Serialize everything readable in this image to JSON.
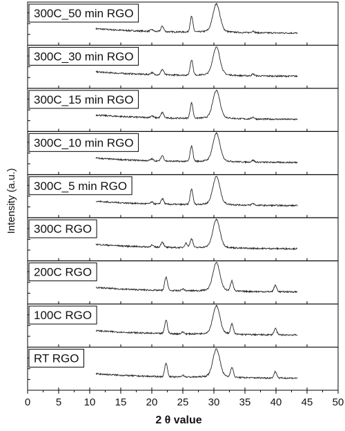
{
  "chart_data": {
    "type": "line",
    "xlabel": "2 θ value",
    "ylabel": "Intensity (a.u.)",
    "xlim": [
      0,
      50
    ],
    "xticks": [
      0,
      5,
      10,
      15,
      20,
      25,
      30,
      35,
      40,
      45,
      50
    ],
    "x_range_data": [
      11,
      43.5
    ],
    "legend": "none (each panel labeled top-left)",
    "grid": false,
    "series": [
      {
        "name": "300C_50 min RGO",
        "peaks": [
          [
            20.0,
            0.1
          ],
          [
            21.7,
            0.3
          ],
          [
            26.4,
            0.85
          ],
          [
            30.4,
            1.4
          ],
          [
            36.3,
            0.1
          ]
        ]
      },
      {
        "name": "300C_30 min RGO",
        "peaks": [
          [
            20.0,
            0.1
          ],
          [
            21.7,
            0.3
          ],
          [
            26.4,
            0.85
          ],
          [
            30.4,
            1.4
          ],
          [
            36.3,
            0.1
          ]
        ]
      },
      {
        "name": "300C_15 min RGO",
        "peaks": [
          [
            20.0,
            0.1
          ],
          [
            21.7,
            0.3
          ],
          [
            26.4,
            0.85
          ],
          [
            30.4,
            1.4
          ],
          [
            36.3,
            0.1
          ]
        ]
      },
      {
        "name": "300C_10 min RGO",
        "peaks": [
          [
            20.0,
            0.1
          ],
          [
            21.7,
            0.3
          ],
          [
            26.4,
            0.85
          ],
          [
            30.4,
            1.4
          ],
          [
            36.3,
            0.1
          ]
        ]
      },
      {
        "name": "300C_5 min RGO",
        "peaks": [
          [
            20.0,
            0.1
          ],
          [
            21.7,
            0.3
          ],
          [
            26.4,
            0.85
          ],
          [
            30.4,
            1.4
          ],
          [
            36.3,
            0.1
          ]
        ]
      },
      {
        "name": "300C RGO",
        "peaks": [
          [
            20.0,
            0.1
          ],
          [
            21.7,
            0.3
          ],
          [
            25.5,
            0.25
          ],
          [
            26.4,
            0.5
          ],
          [
            30.4,
            1.4
          ]
        ]
      },
      {
        "name": "200C RGO",
        "peaks": [
          [
            22.3,
            0.75
          ],
          [
            25.0,
            0.1
          ],
          [
            30.4,
            1.4
          ],
          [
            32.9,
            0.55
          ],
          [
            39.9,
            0.35
          ]
        ]
      },
      {
        "name": "100C RGO",
        "peaks": [
          [
            22.3,
            0.75
          ],
          [
            25.0,
            0.1
          ],
          [
            30.4,
            1.4
          ],
          [
            32.9,
            0.55
          ],
          [
            39.9,
            0.35
          ]
        ]
      },
      {
        "name": "RT RGO",
        "peaks": [
          [
            22.3,
            0.75
          ],
          [
            25.0,
            0.1
          ],
          [
            30.4,
            1.4
          ],
          [
            32.9,
            0.55
          ],
          [
            39.9,
            0.35
          ]
        ]
      }
    ]
  }
}
